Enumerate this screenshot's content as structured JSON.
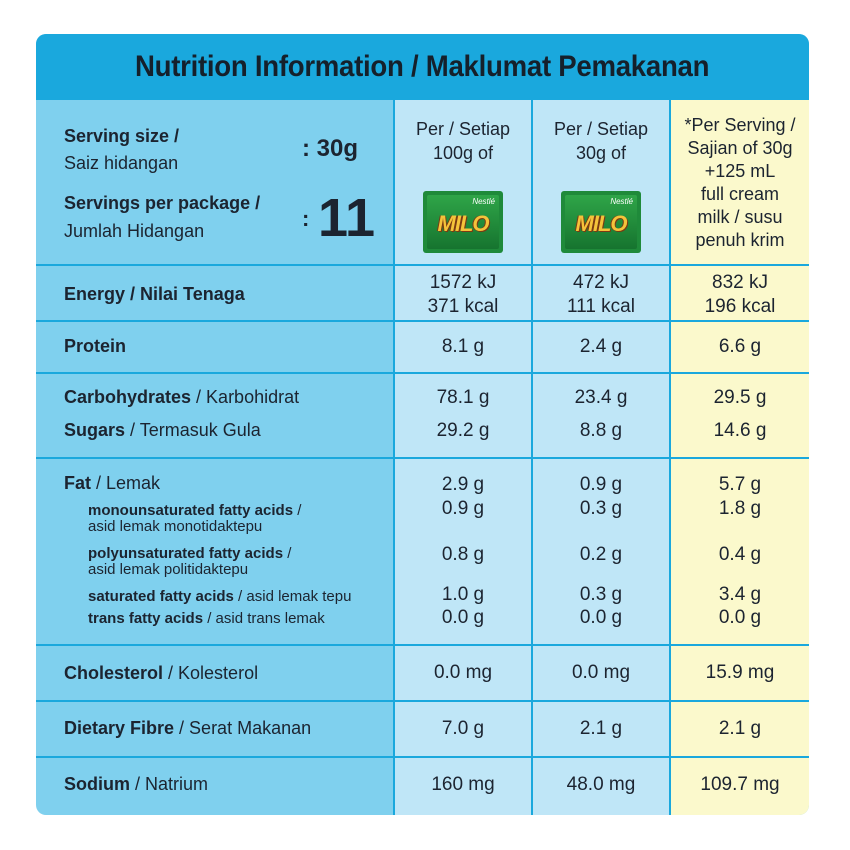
{
  "title": "Nutrition Information / Maklumat Pemakanan",
  "serving": {
    "size_label_en": "Serving size /",
    "size_label_ms": "Saiz hidangan",
    "size_value": ": 30g",
    "per_package_label_en": "Servings per package /",
    "per_package_label_ms": "Jumlah Hidangan",
    "per_package_colon": ":",
    "per_package_value": "11"
  },
  "columns": [
    {
      "line1": "Per / Setiap",
      "line2": "100g of",
      "logo_text": "MILO",
      "logo_brand": "Nestlé"
    },
    {
      "line1": "Per / Setiap",
      "line2": "30g of",
      "logo_text": "MILO",
      "logo_brand": "Nestlé"
    },
    {
      "lines": [
        "*Per Serving /",
        "Sajian of 30g",
        "+125 mL",
        "full cream",
        "milk / susu",
        "penuh krim"
      ]
    }
  ],
  "rows": {
    "energy": {
      "label_bold": "Energy / Nilai Tenaga",
      "v1a": "1572 kJ",
      "v1b": "371 kcal",
      "v2a": "472 kJ",
      "v2b": "111 kcal",
      "v3a": "832 kJ",
      "v3b": "196 kcal"
    },
    "protein": {
      "label_bold": "Protein",
      "v1": "8.1 g",
      "v2": "2.4 g",
      "v3": "6.6 g"
    },
    "carbohydrates": {
      "label_bold": "Carbohydrates",
      "label_rest": " / Karbohidrat",
      "v1": "78.1 g",
      "v2": "23.4 g",
      "v3": "29.5 g"
    },
    "sugars": {
      "label_bold": "Sugars",
      "label_rest": " / Termasuk Gula",
      "v1": "29.2 g",
      "v2": "8.8 g",
      "v3": "14.6 g"
    },
    "fat": {
      "label_bold": "Fat",
      "label_rest": " / Lemak",
      "v1": "2.9 g",
      "v2": "0.9 g",
      "v3": "5.7 g"
    },
    "mufa": {
      "label_bold": "monounsaturated fatty acids",
      "label_rest": " /",
      "label_line2": "asid lemak monotidaktepu",
      "v1": "0.9 g",
      "v2": "0.3 g",
      "v3": "1.8 g"
    },
    "pufa": {
      "label_bold": "polyunsaturated fatty acids",
      "label_rest": " /",
      "label_line2": "asid lemak politidaktepu",
      "v1": "0.8 g",
      "v2": "0.2 g",
      "v3": "0.4 g"
    },
    "sfa": {
      "label_bold": "saturated fatty acids",
      "label_rest": " / asid lemak tepu",
      "v1": "1.0 g",
      "v2": "0.3 g",
      "v3": "3.4 g"
    },
    "tfa": {
      "label_bold": "trans fatty acids",
      "label_rest": " / asid trans lemak",
      "v1": "0.0 g",
      "v2": "0.0 g",
      "v3": "0.0 g"
    },
    "cholesterol": {
      "label_bold": "Cholesterol",
      "label_rest": " / Kolesterol",
      "v1": "0.0 mg",
      "v2": "0.0 mg",
      "v3": "15.9 mg"
    },
    "fibre": {
      "label_bold": "Dietary Fibre",
      "label_rest": " / Serat Makanan",
      "v1": "7.0 g",
      "v2": "2.1 g",
      "v3": "2.1 g"
    },
    "sodium": {
      "label_bold": "Sodium",
      "label_rest": " / Natrium",
      "v1": "160 mg",
      "v2": "48.0 mg",
      "v3": "109.7 mg"
    }
  },
  "colors": {
    "header_blue": "#1aa8dd",
    "panel_blue": "#7fd0ee",
    "value_blue": "#bfe6f7",
    "milk_yellow": "#fbf9cc"
  }
}
